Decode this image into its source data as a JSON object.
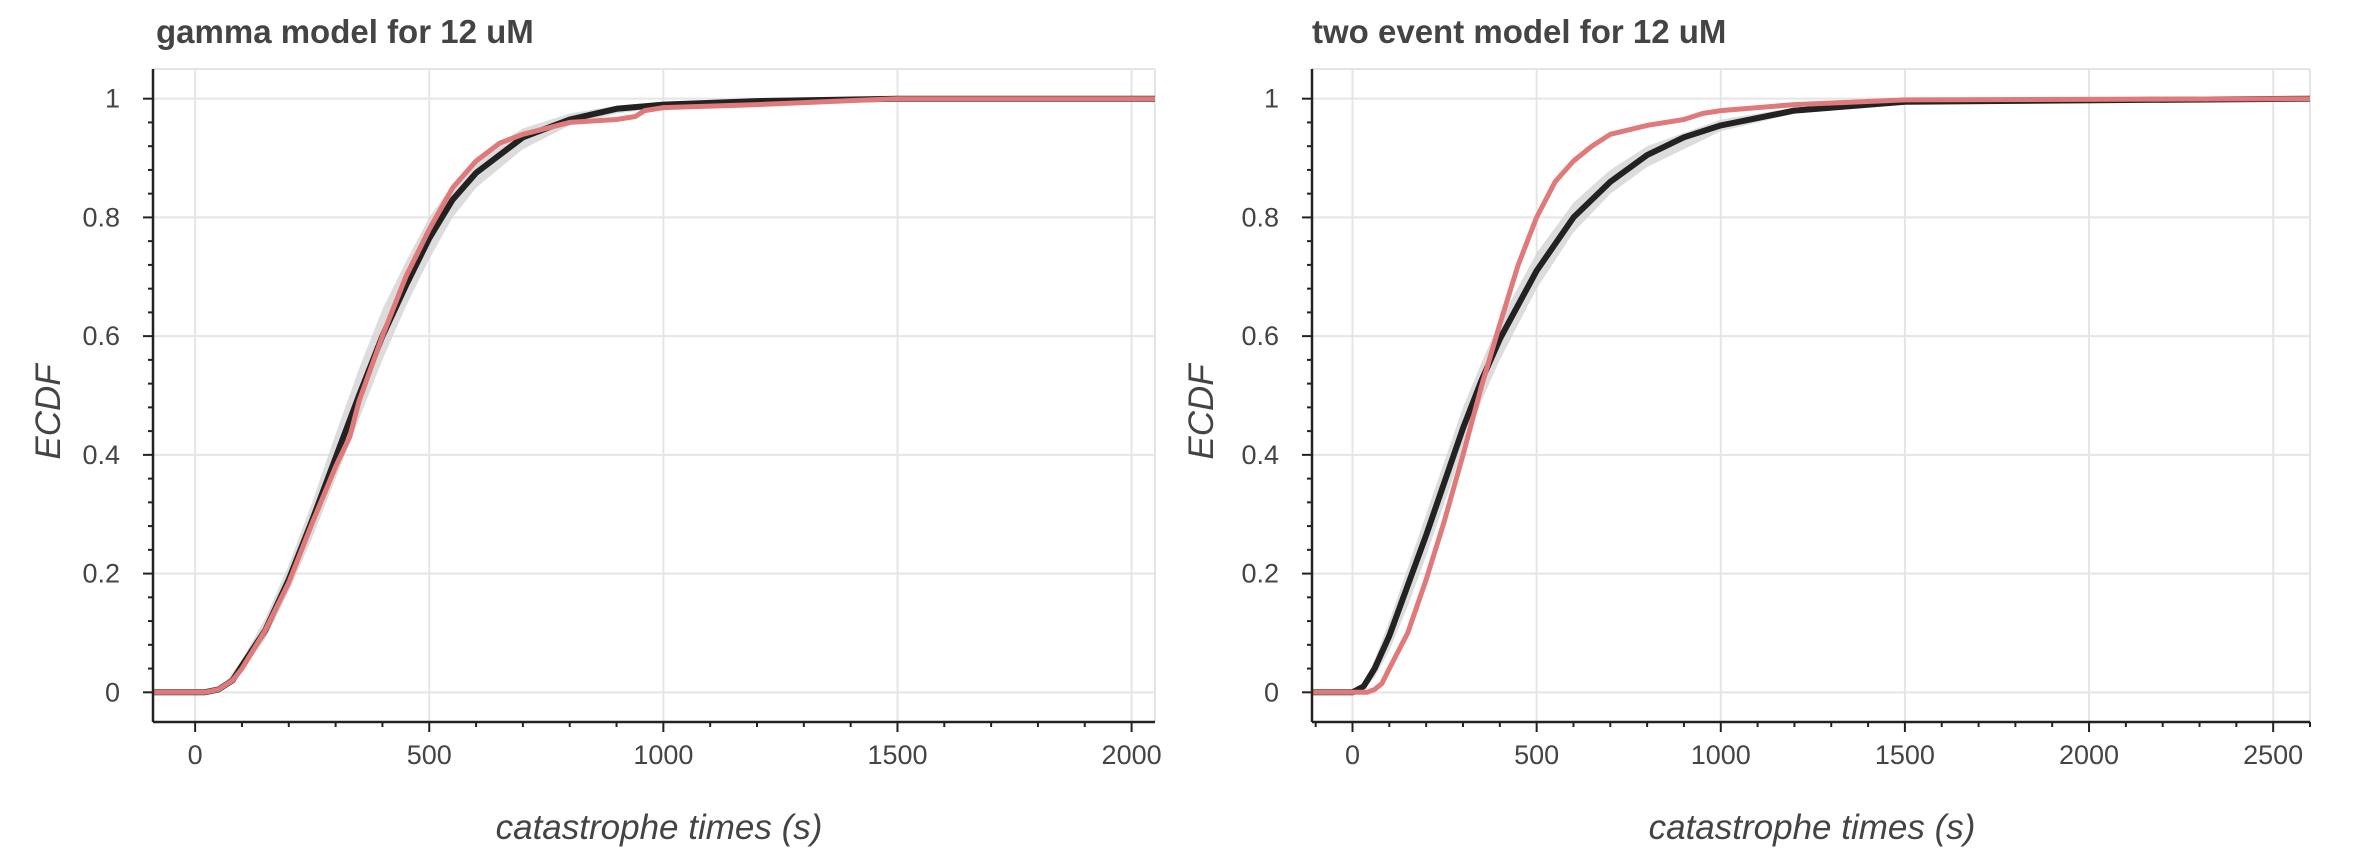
{
  "chart_data": [
    {
      "type": "line",
      "title": "gamma model for 12 uM",
      "xlabel": "catastrophe times (s)",
      "ylabel": "ECDF",
      "xlim": [
        -90,
        2050
      ],
      "ylim": [
        -0.05,
        1.05
      ],
      "xticks": [
        0,
        500,
        1000,
        1500,
        2000
      ],
      "xtick_labels": [
        "0",
        "500",
        "1000",
        "1500",
        "2000"
      ],
      "yticks": [
        0,
        0.2,
        0.4,
        0.6,
        0.8,
        1
      ],
      "ytick_labels": [
        "0",
        "0.2",
        "0.4",
        "0.6",
        "0.8",
        "1"
      ],
      "grid": true,
      "colors": {
        "band": "#d3d3d3",
        "model": "#222222",
        "data": "#e07a7a",
        "grid": "#e5e5e5",
        "axis": "#222222"
      },
      "series": [
        {
          "role": "model-band",
          "x": [
            -90,
            20,
            60,
            100,
            150,
            200,
            250,
            300,
            350,
            400,
            450,
            500,
            550,
            600,
            700,
            800,
            900,
            1000,
            1200,
            1500,
            2050
          ],
          "lower": [
            0,
            0,
            0.005,
            0.035,
            0.09,
            0.17,
            0.26,
            0.36,
            0.46,
            0.56,
            0.65,
            0.73,
            0.8,
            0.85,
            0.915,
            0.955,
            0.975,
            0.985,
            0.993,
            0.999,
            1
          ],
          "upper": [
            0,
            0,
            0.012,
            0.055,
            0.125,
            0.215,
            0.32,
            0.435,
            0.545,
            0.645,
            0.725,
            0.8,
            0.855,
            0.9,
            0.95,
            0.975,
            0.988,
            0.993,
            0.997,
            1,
            1
          ]
        },
        {
          "role": "model",
          "x": [
            -90,
            20,
            50,
            80,
            100,
            150,
            200,
            250,
            300,
            350,
            400,
            450,
            500,
            550,
            600,
            700,
            800,
            900,
            1000,
            1200,
            1500,
            2050
          ],
          "y": [
            0,
            0,
            0.005,
            0.02,
            0.045,
            0.105,
            0.19,
            0.29,
            0.395,
            0.5,
            0.6,
            0.685,
            0.765,
            0.83,
            0.875,
            0.935,
            0.965,
            0.983,
            0.99,
            0.996,
            1,
            1
          ]
        },
        {
          "role": "data",
          "x": [
            -90,
            20,
            50,
            80,
            100,
            150,
            200,
            250,
            300,
            330,
            350,
            400,
            450,
            500,
            550,
            600,
            650,
            700,
            800,
            900,
            940,
            960,
            1000,
            1200,
            1500,
            2050
          ],
          "y": [
            0,
            0,
            0.005,
            0.02,
            0.04,
            0.105,
            0.185,
            0.285,
            0.38,
            0.43,
            0.49,
            0.6,
            0.7,
            0.78,
            0.85,
            0.895,
            0.925,
            0.94,
            0.96,
            0.965,
            0.97,
            0.98,
            0.985,
            0.99,
            1,
            1
          ]
        }
      ]
    },
    {
      "type": "line",
      "title": "two event model for 12 uM",
      "xlabel": "catastrophe times (s)",
      "ylabel": "ECDF",
      "xlim": [
        -110,
        2600
      ],
      "ylim": [
        -0.05,
        1.05
      ],
      "xticks": [
        0,
        500,
        1000,
        1500,
        2000,
        2500
      ],
      "xtick_labels": [
        "0",
        "500",
        "1000",
        "1500",
        "2000",
        "2500"
      ],
      "yticks": [
        0,
        0.2,
        0.4,
        0.6,
        0.8,
        1
      ],
      "ytick_labels": [
        "0",
        "0.2",
        "0.4",
        "0.6",
        "0.8",
        "1"
      ],
      "grid": true,
      "colors": {
        "band": "#d3d3d3",
        "model": "#222222",
        "data": "#e07a7a",
        "grid": "#e5e5e5",
        "axis": "#222222"
      },
      "series": [
        {
          "role": "model-band",
          "x": [
            -110,
            0,
            30,
            60,
            100,
            150,
            200,
            250,
            300,
            350,
            400,
            500,
            600,
            700,
            800,
            1000,
            1200,
            1500,
            2600
          ],
          "lower": [
            0,
            0,
            0.004,
            0.025,
            0.07,
            0.145,
            0.23,
            0.32,
            0.41,
            0.49,
            0.56,
            0.68,
            0.775,
            0.84,
            0.885,
            0.945,
            0.975,
            0.992,
            1
          ],
          "upper": [
            0,
            0,
            0.016,
            0.055,
            0.12,
            0.21,
            0.3,
            0.39,
            0.48,
            0.555,
            0.625,
            0.74,
            0.825,
            0.88,
            0.92,
            0.965,
            0.985,
            0.997,
            1
          ]
        },
        {
          "role": "model",
          "x": [
            -110,
            0,
            30,
            60,
            100,
            150,
            200,
            250,
            300,
            350,
            400,
            500,
            600,
            700,
            800,
            900,
            1000,
            1200,
            1500,
            2600
          ],
          "y": [
            0,
            0,
            0.01,
            0.04,
            0.095,
            0.18,
            0.265,
            0.355,
            0.445,
            0.525,
            0.595,
            0.71,
            0.8,
            0.86,
            0.905,
            0.935,
            0.955,
            0.98,
            0.995,
            1
          ]
        },
        {
          "role": "data",
          "x": [
            -110,
            40,
            60,
            80,
            100,
            150,
            200,
            250,
            300,
            350,
            400,
            450,
            500,
            550,
            600,
            650,
            700,
            800,
            900,
            950,
            1000,
            1200,
            1500,
            2600
          ],
          "y": [
            0,
            0,
            0.005,
            0.015,
            0.04,
            0.1,
            0.19,
            0.29,
            0.4,
            0.515,
            0.62,
            0.72,
            0.8,
            0.86,
            0.895,
            0.92,
            0.94,
            0.955,
            0.965,
            0.975,
            0.98,
            0.99,
            0.998,
            1
          ]
        }
      ]
    }
  ]
}
